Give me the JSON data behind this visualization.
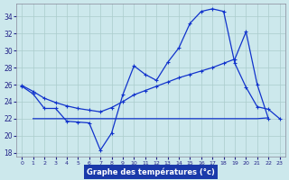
{
  "background_color": "#cce8ec",
  "grid_color": "#aacccc",
  "line_color": "#1133cc",
  "xlabel": "Graphe des températures (°c)",
  "xlabel_bg": "#1a3aaa",
  "xlabel_fg": "#ffffff",
  "hours": [
    0,
    1,
    2,
    3,
    4,
    5,
    6,
    7,
    8,
    9,
    10,
    11,
    12,
    13,
    14,
    15,
    16,
    17,
    18,
    19,
    20,
    21,
    22,
    23
  ],
  "curve_main": [
    25.8,
    24.9,
    23.2,
    23.2,
    21.7,
    21.6,
    21.5,
    18.3,
    20.3,
    24.8,
    28.2,
    27.2,
    26.5,
    28.6,
    30.3,
    33.2,
    34.6,
    34.9,
    34.6,
    28.5,
    25.7,
    23.4,
    23.1,
    22.0
  ],
  "curve_rising": [
    25.9,
    25.2,
    24.4,
    23.9,
    23.5,
    23.2,
    23.0,
    22.8,
    23.3,
    24.0,
    24.8,
    25.3,
    25.8,
    26.3,
    26.8,
    27.2,
    27.6,
    28.0,
    28.5,
    29.0,
    32.2,
    26.0,
    22.0,
    null
  ],
  "curve_flat": [
    null,
    22.0,
    22.0,
    22.0,
    22.0,
    22.0,
    22.0,
    22.0,
    22.0,
    22.0,
    22.0,
    22.0,
    22.0,
    22.0,
    22.0,
    22.0,
    22.0,
    22.0,
    22.0,
    22.0,
    22.0,
    22.0,
    22.1,
    null
  ],
  "ylim": [
    17.5,
    35.5
  ],
  "yticks": [
    18,
    20,
    22,
    24,
    26,
    28,
    30,
    32,
    34
  ],
  "xlim": [
    -0.5,
    23.5
  ],
  "figsize": [
    3.2,
    2.0
  ],
  "dpi": 100
}
